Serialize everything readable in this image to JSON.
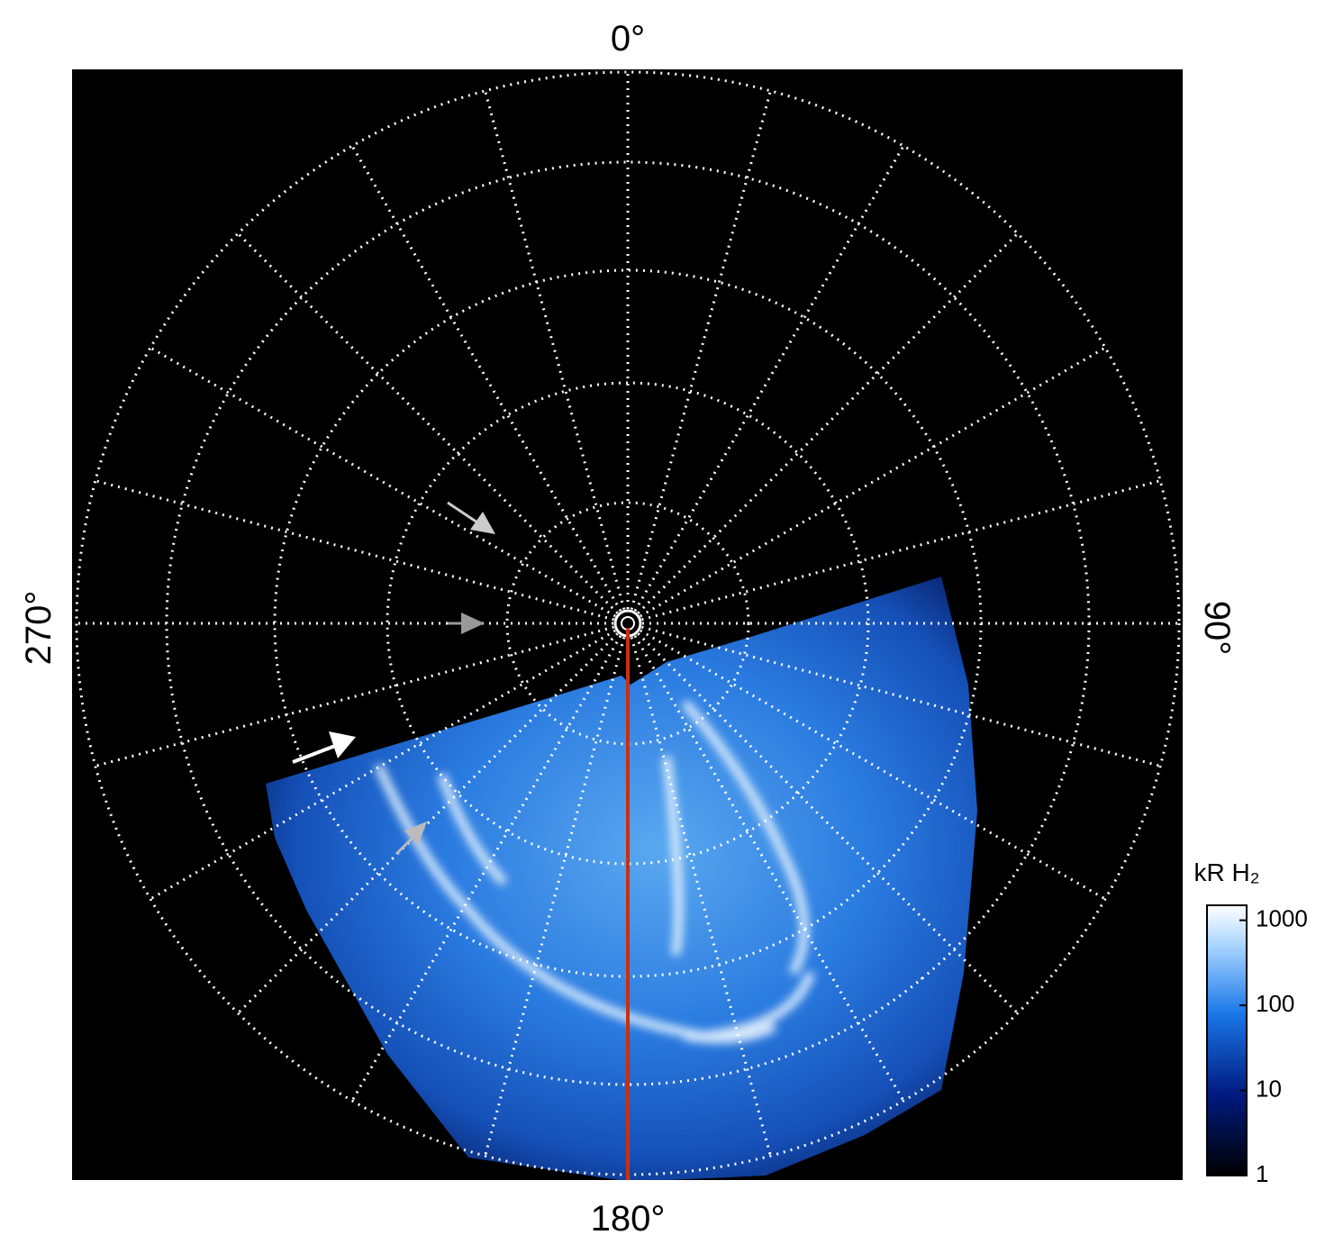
{
  "axes": {
    "top": "0°",
    "right": "90°",
    "bottom": "180°",
    "left": "270°"
  },
  "colorbar": {
    "title": "kR H₂",
    "scale": "log",
    "lim": [
      1,
      1500
    ],
    "ticks": [
      1,
      10,
      100,
      1000
    ]
  }
}
